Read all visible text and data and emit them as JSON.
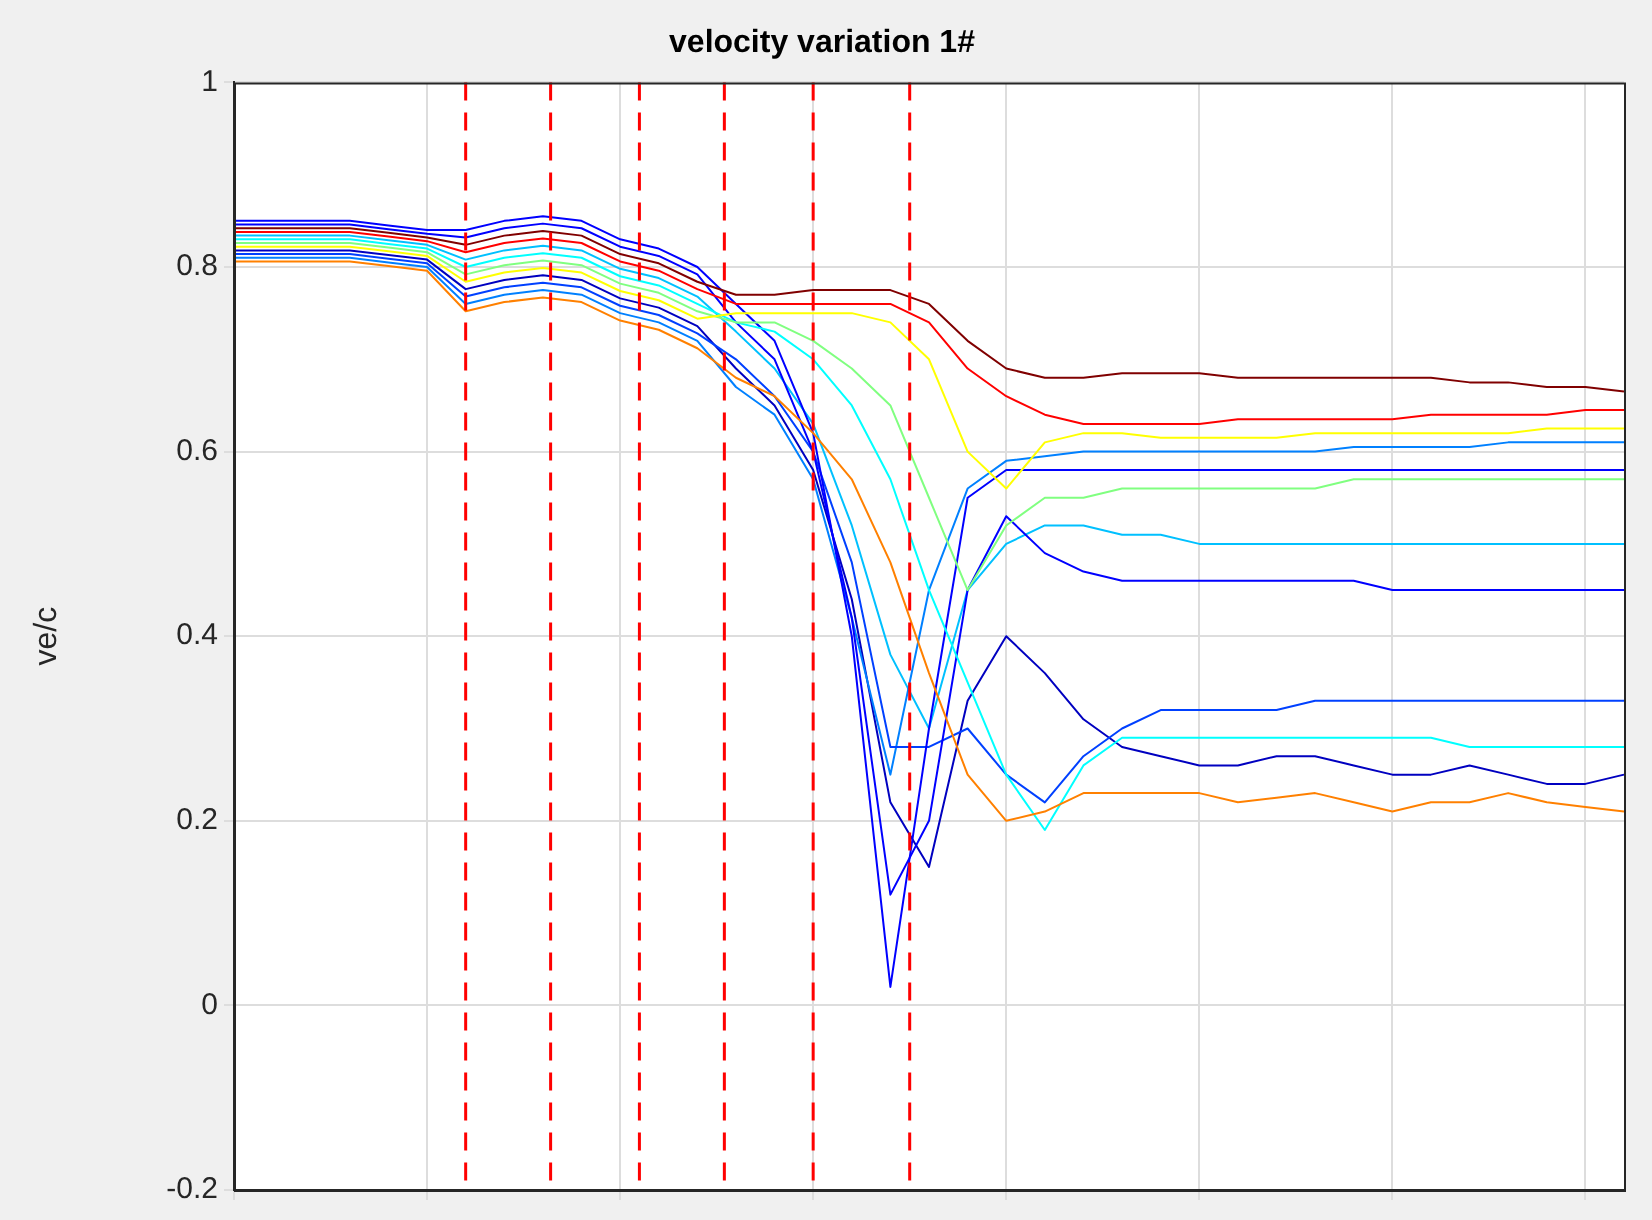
{
  "chart_data": {
    "type": "line",
    "title": "velocity variation 1#",
    "ylabel": "ve/c",
    "categories": [
      null,
      null,
      null,
      null,
      null,
      null,
      null,
      null,
      null,
      null,
      null,
      null,
      null,
      null,
      null,
      null,
      null,
      null,
      null,
      null,
      null,
      null,
      null,
      null,
      null,
      null,
      null,
      null,
      null,
      null,
      null,
      null,
      null,
      null,
      null,
      null,
      null
    ],
    "ylim": [
      -0.2,
      1
    ],
    "yticks": [
      -0.2,
      0,
      0.2,
      0.4,
      0.6,
      0.8,
      1
    ],
    "tick_labels": "y",
    "grid": true,
    "legend": false,
    "marker": "none",
    "line_style": "solid",
    "series": [
      {
        "color": "#800000",
        "values": [
          0.842,
          0.842,
          0.842,
          0.842,
          0.837,
          0.832,
          0.824,
          0.834,
          0.839,
          0.834,
          0.814,
          0.804,
          0.784,
          0.77,
          0.77,
          0.775,
          0.775,
          0.775,
          0.76,
          0.72,
          0.69,
          0.68,
          0.68,
          0.685,
          0.685,
          0.685,
          0.68,
          0.68,
          0.68,
          0.68,
          0.68,
          0.68,
          0.675,
          0.675,
          0.67,
          0.67,
          0.665
        ]
      },
      {
        "color": "#ff0000",
        "values": [
          0.838,
          0.838,
          0.838,
          0.838,
          0.833,
          0.828,
          0.816,
          0.826,
          0.831,
          0.826,
          0.806,
          0.796,
          0.776,
          0.76,
          0.76,
          0.76,
          0.76,
          0.76,
          0.74,
          0.69,
          0.66,
          0.64,
          0.63,
          0.63,
          0.63,
          0.63,
          0.635,
          0.635,
          0.635,
          0.635,
          0.635,
          0.64,
          0.64,
          0.64,
          0.64,
          0.645,
          0.645
        ]
      },
      {
        "color": "#ff8000",
        "values": [
          0.806,
          0.806,
          0.806,
          0.806,
          0.801,
          0.796,
          0.752,
          0.762,
          0.767,
          0.762,
          0.742,
          0.732,
          0.712,
          0.68,
          0.66,
          0.62,
          0.57,
          0.48,
          0.36,
          0.25,
          0.2,
          0.21,
          0.23,
          0.23,
          0.23,
          0.23,
          0.22,
          0.225,
          0.23,
          0.22,
          0.21,
          0.22,
          0.22,
          0.23,
          0.22,
          0.215,
          0.21
        ]
      },
      {
        "color": "#ffff00",
        "values": [
          0.822,
          0.822,
          0.822,
          0.822,
          0.817,
          0.812,
          0.784,
          0.794,
          0.799,
          0.794,
          0.774,
          0.764,
          0.744,
          0.75,
          0.75,
          0.75,
          0.75,
          0.74,
          0.7,
          0.6,
          0.56,
          0.61,
          0.62,
          0.62,
          0.615,
          0.615,
          0.615,
          0.615,
          0.62,
          0.62,
          0.62,
          0.62,
          0.62,
          0.62,
          0.625,
          0.625,
          0.625
        ]
      },
      {
        "color": "#80ff80",
        "values": [
          0.826,
          0.826,
          0.826,
          0.826,
          0.821,
          0.816,
          0.792,
          0.802,
          0.807,
          0.802,
          0.782,
          0.772,
          0.752,
          0.74,
          0.74,
          0.72,
          0.69,
          0.65,
          0.55,
          0.45,
          0.52,
          0.55,
          0.55,
          0.56,
          0.56,
          0.56,
          0.56,
          0.56,
          0.56,
          0.57,
          0.57,
          0.57,
          0.57,
          0.57,
          0.57,
          0.57,
          0.57
        ]
      },
      {
        "color": "#00ffff",
        "values": [
          0.83,
          0.83,
          0.83,
          0.83,
          0.825,
          0.82,
          0.8,
          0.81,
          0.815,
          0.81,
          0.79,
          0.78,
          0.76,
          0.74,
          0.73,
          0.7,
          0.65,
          0.57,
          0.45,
          0.35,
          0.25,
          0.19,
          0.26,
          0.29,
          0.29,
          0.29,
          0.29,
          0.29,
          0.29,
          0.29,
          0.29,
          0.29,
          0.28,
          0.28,
          0.28,
          0.28,
          0.28
        ]
      },
      {
        "color": "#0000ff",
        "values": [
          0.85,
          0.85,
          0.85,
          0.85,
          0.845,
          0.84,
          0.84,
          0.85,
          0.855,
          0.85,
          0.83,
          0.82,
          0.8,
          0.76,
          0.72,
          0.62,
          0.4,
          0.02,
          0.3,
          0.55,
          0.58,
          0.58,
          0.58,
          0.58,
          0.58,
          0.58,
          0.58,
          0.58,
          0.58,
          0.58,
          0.58,
          0.58,
          0.58,
          0.58,
          0.58,
          0.58,
          0.58
        ]
      },
      {
        "color": "#0000ff",
        "values": [
          0.846,
          0.846,
          0.846,
          0.846,
          0.841,
          0.836,
          0.832,
          0.842,
          0.847,
          0.842,
          0.822,
          0.812,
          0.792,
          0.74,
          0.7,
          0.6,
          0.42,
          0.12,
          0.2,
          0.45,
          0.53,
          0.49,
          0.47,
          0.46,
          0.46,
          0.46,
          0.46,
          0.46,
          0.46,
          0.46,
          0.45,
          0.45,
          0.45,
          0.45,
          0.45,
          0.45,
          0.45
        ]
      },
      {
        "color": "#0040ff",
        "values": [
          0.814,
          0.814,
          0.814,
          0.814,
          0.809,
          0.804,
          0.768,
          0.778,
          0.783,
          0.778,
          0.758,
          0.748,
          0.728,
          0.7,
          0.66,
          0.6,
          0.48,
          0.28,
          0.28,
          0.3,
          0.25,
          0.22,
          0.27,
          0.3,
          0.32,
          0.32,
          0.32,
          0.32,
          0.33,
          0.33,
          0.33,
          0.33,
          0.33,
          0.33,
          0.33,
          0.33,
          0.33
        ]
      },
      {
        "color": "#0080ff",
        "values": [
          0.81,
          0.81,
          0.81,
          0.81,
          0.805,
          0.8,
          0.76,
          0.77,
          0.775,
          0.77,
          0.75,
          0.74,
          0.72,
          0.67,
          0.64,
          0.57,
          0.42,
          0.25,
          0.45,
          0.56,
          0.59,
          0.595,
          0.6,
          0.6,
          0.6,
          0.6,
          0.6,
          0.6,
          0.6,
          0.605,
          0.605,
          0.605,
          0.605,
          0.61,
          0.61,
          0.61,
          0.61
        ]
      },
      {
        "color": "#0000c0",
        "values": [
          0.818,
          0.818,
          0.818,
          0.818,
          0.813,
          0.808,
          0.776,
          0.786,
          0.791,
          0.786,
          0.766,
          0.756,
          0.736,
          0.69,
          0.65,
          0.58,
          0.44,
          0.22,
          0.15,
          0.33,
          0.4,
          0.36,
          0.31,
          0.28,
          0.27,
          0.26,
          0.26,
          0.27,
          0.27,
          0.26,
          0.25,
          0.25,
          0.26,
          0.25,
          0.24,
          0.24,
          0.25
        ]
      },
      {
        "color": "#00c0ff",
        "values": [
          0.834,
          0.834,
          0.834,
          0.834,
          0.829,
          0.824,
          0.808,
          0.818,
          0.823,
          0.818,
          0.798,
          0.788,
          0.768,
          0.73,
          0.69,
          0.63,
          0.52,
          0.38,
          0.3,
          0.45,
          0.5,
          0.52,
          0.52,
          0.51,
          0.51,
          0.5,
          0.5,
          0.5,
          0.5,
          0.5,
          0.5,
          0.5,
          0.5,
          0.5,
          0.5,
          0.5,
          0.5
        ]
      }
    ]
  }
}
